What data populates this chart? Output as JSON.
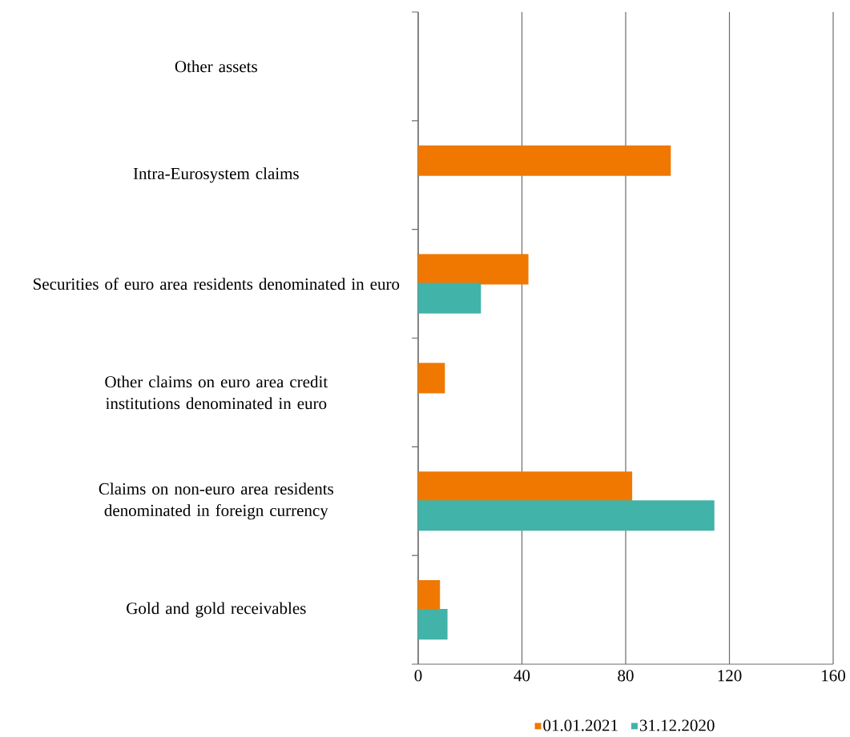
{
  "chart_data": {
    "type": "bar",
    "orientation": "horizontal",
    "categories": [
      "Other assets",
      "Intra-Eurosystem claims",
      "Securities of euro area residents denominated in euro",
      "Other claims on euro area credit institutions denominated in euro",
      "Claims on non-euro area residents denominated in foreign currency",
      "Gold and gold receivables"
    ],
    "series": [
      {
        "name": "01.01.2021",
        "color": "#f07800",
        "values": [
          null,
          97.4,
          42.5,
          10.3,
          82.5,
          8.4
        ]
      },
      {
        "name": "31.12.2020",
        "color": "#41b3a9",
        "values": [
          null,
          null,
          24.2,
          null,
          114.2,
          11.3
        ]
      }
    ],
    "xlim": [
      0,
      160
    ],
    "xticks": [
      0,
      40,
      80,
      120,
      160
    ],
    "grid": "x",
    "legend": "bottom"
  }
}
